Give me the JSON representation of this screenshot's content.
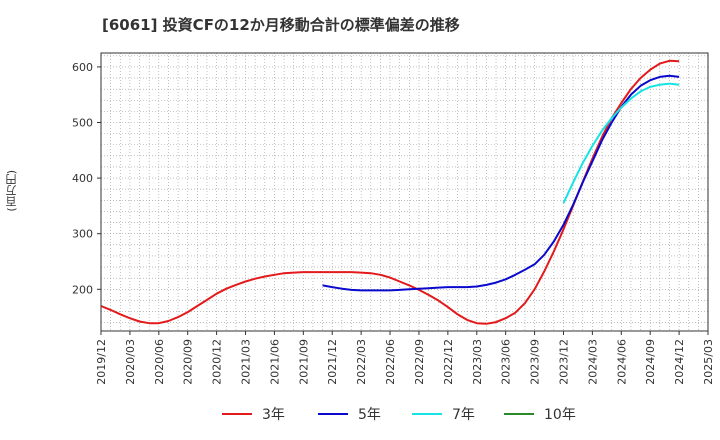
{
  "chart_data": {
    "type": "line",
    "title": "[6061]  投資CFの12か月移動合計の標準偏差の推移",
    "ylabel": "(百万円)",
    "xlabel": "",
    "ylim": [
      125,
      625
    ],
    "yticks": [
      200,
      300,
      400,
      500,
      600
    ],
    "xticks": [
      "2019/12",
      "2020/03",
      "2020/06",
      "2020/09",
      "2020/12",
      "2021/03",
      "2021/06",
      "2021/09",
      "2021/12",
      "2022/03",
      "2022/06",
      "2022/09",
      "2022/12",
      "2023/03",
      "2023/06",
      "2023/09",
      "2023/12",
      "2024/03",
      "2024/06",
      "2024/09",
      "2024/12",
      "2025/03"
    ],
    "grid": true,
    "legend_position": "bottom",
    "series": [
      {
        "name": "3年",
        "color": "#e31a1c",
        "x": [
          "2019/12",
          "2020/01",
          "2020/02",
          "2020/03",
          "2020/04",
          "2020/05",
          "2020/06",
          "2020/07",
          "2020/08",
          "2020/09",
          "2020/10",
          "2020/11",
          "2020/12",
          "2021/01",
          "2021/02",
          "2021/03",
          "2021/04",
          "2021/05",
          "2021/06",
          "2021/07",
          "2021/08",
          "2021/09",
          "2021/10",
          "2021/11",
          "2021/12",
          "2022/01",
          "2022/02",
          "2022/03",
          "2022/04",
          "2022/05",
          "2022/06",
          "2022/07",
          "2022/08",
          "2022/09",
          "2022/10",
          "2022/11",
          "2022/12",
          "2023/01",
          "2023/02",
          "2023/03",
          "2023/04",
          "2023/05",
          "2023/06",
          "2023/07",
          "2023/08",
          "2023/09",
          "2023/10",
          "2023/11",
          "2023/12",
          "2024/01",
          "2024/02",
          "2024/03",
          "2024/04",
          "2024/05",
          "2024/06",
          "2024/07",
          "2024/08",
          "2024/09",
          "2024/10",
          "2024/11",
          "2024/12"
        ],
        "values": [
          170,
          163,
          155,
          148,
          142,
          139,
          139,
          143,
          150,
          159,
          170,
          181,
          192,
          201,
          208,
          214,
          219,
          223,
          226,
          229,
          230,
          231,
          231,
          231,
          231,
          231,
          231,
          230,
          229,
          226,
          221,
          214,
          207,
          199,
          190,
          180,
          168,
          155,
          145,
          139,
          138,
          141,
          148,
          158,
          175,
          200,
          232,
          268,
          308,
          350,
          393,
          435,
          474,
          508,
          535,
          560,
          580,
          595,
          606,
          611,
          610
        ]
      },
      {
        "name": "5年",
        "color": "#0a0acc",
        "x": [
          "2021/11",
          "2021/12",
          "2022/01",
          "2022/02",
          "2022/03",
          "2022/04",
          "2022/05",
          "2022/06",
          "2022/07",
          "2022/08",
          "2022/09",
          "2022/10",
          "2022/11",
          "2022/12",
          "2023/01",
          "2023/02",
          "2023/03",
          "2023/04",
          "2023/05",
          "2023/06",
          "2023/07",
          "2023/08",
          "2023/09",
          "2023/10",
          "2023/11",
          "2023/12",
          "2024/01",
          "2024/02",
          "2024/03",
          "2024/04",
          "2024/05",
          "2024/06",
          "2024/07",
          "2024/08",
          "2024/09",
          "2024/10",
          "2024/11",
          "2024/12"
        ],
        "values": [
          207,
          204,
          201,
          199,
          198,
          198,
          198,
          198,
          199,
          200,
          201,
          202,
          203,
          204,
          204,
          204,
          205,
          208,
          212,
          218,
          226,
          235,
          245,
          262,
          286,
          316,
          352,
          392,
          430,
          468,
          500,
          528,
          550,
          566,
          576,
          582,
          584,
          582
        ]
      },
      {
        "name": "7年",
        "color": "#16e3e3",
        "x": [
          "2023/12",
          "2024/01",
          "2024/02",
          "2024/03",
          "2024/04",
          "2024/05",
          "2024/06",
          "2024/07",
          "2024/08",
          "2024/09",
          "2024/10",
          "2024/11",
          "2024/12"
        ],
        "values": [
          355,
          392,
          427,
          458,
          485,
          508,
          527,
          543,
          556,
          564,
          568,
          570,
          568
        ]
      },
      {
        "name": "10年",
        "color": "#2a8a2a",
        "x": [],
        "values": []
      }
    ]
  }
}
